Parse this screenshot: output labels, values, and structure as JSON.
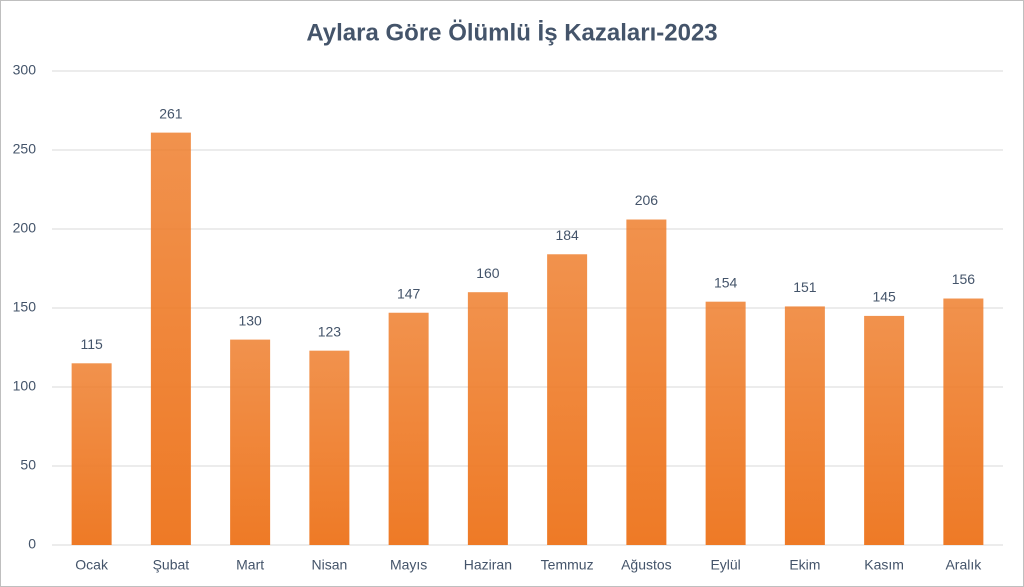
{
  "chart_data": {
    "type": "bar",
    "title": "Aylara Göre Ölümlü İş Kazaları-2023",
    "categories": [
      "Ocak",
      "Şubat",
      "Mart",
      "Nisan",
      "Mayıs",
      "Haziran",
      "Temmuz",
      "Ağustos",
      "Eylül",
      "Ekim",
      "Kasım",
      "Aralık"
    ],
    "values": [
      115,
      261,
      130,
      123,
      147,
      160,
      184,
      206,
      154,
      151,
      145,
      156
    ],
    "color": "#ee7a26",
    "ylim": [
      0,
      300
    ],
    "yticks": [
      0,
      50,
      100,
      150,
      200,
      250,
      300
    ],
    "grid": true,
    "data_labels": true
  }
}
